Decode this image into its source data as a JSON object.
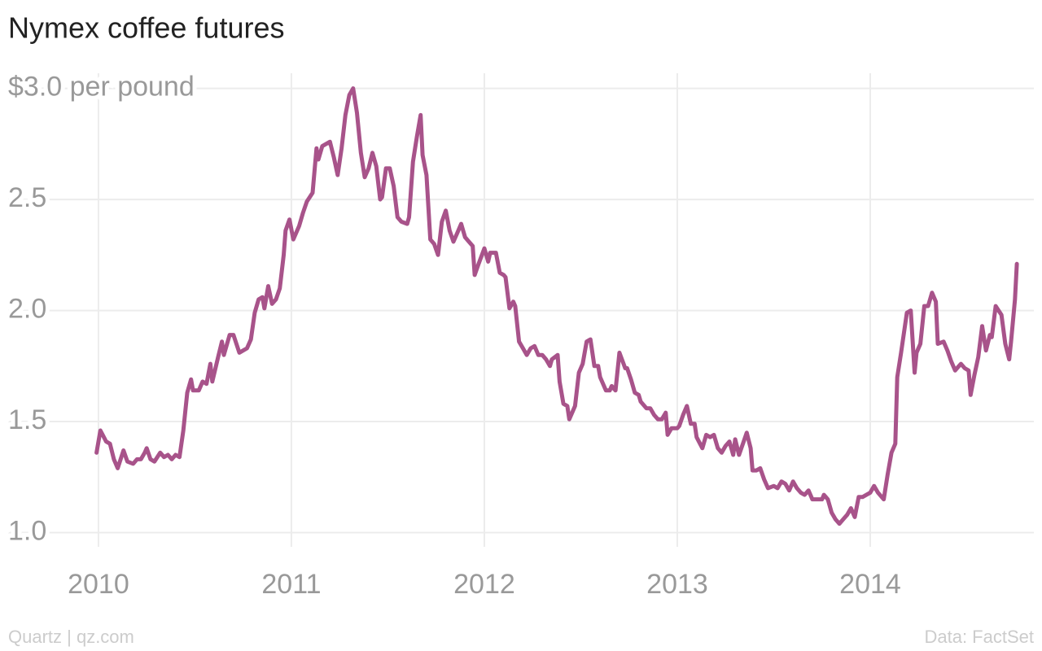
{
  "chart_data": {
    "type": "line",
    "title": "Nymex coffee futures",
    "source_left": "Quartz | qz.com",
    "source_right": "Data: FactSet",
    "x": [
      2009.99,
      2010.01,
      2010.04,
      2010.06,
      2010.08,
      2010.1,
      2010.13,
      2010.15,
      2010.18,
      2010.2,
      2010.22,
      2010.24,
      2010.25,
      2010.27,
      2010.29,
      2010.32,
      2010.34,
      2010.36,
      2010.38,
      2010.4,
      2010.42,
      2010.44,
      2010.46,
      2010.48,
      2010.49,
      2010.52,
      2010.54,
      2010.56,
      2010.58,
      2010.59,
      2010.62,
      2010.64,
      2010.65,
      2010.68,
      2010.7,
      2010.73,
      2010.75,
      2010.77,
      2010.79,
      2010.81,
      2010.83,
      2010.85,
      2010.86,
      2010.88,
      2010.9,
      2010.92,
      2010.94,
      2010.96,
      2010.97,
      2010.99,
      2011.01,
      2011.04,
      2011.06,
      2011.08,
      2011.11,
      2011.13,
      2011.14,
      2011.16,
      2011.2,
      2011.22,
      2011.24,
      2011.26,
      2011.28,
      2011.3,
      2011.32,
      2011.34,
      2011.36,
      2011.38,
      2011.4,
      2011.42,
      2011.44,
      2011.46,
      2011.47,
      2011.49,
      2011.51,
      2011.53,
      2011.55,
      2011.57,
      2011.6,
      2011.61,
      2011.63,
      2011.65,
      2011.67,
      2011.68,
      2011.7,
      2011.72,
      2011.74,
      2011.76,
      2011.78,
      2011.8,
      2011.82,
      2011.84,
      2011.86,
      2011.88,
      2011.9,
      2011.92,
      2011.94,
      2011.95,
      2011.97,
      2012.0,
      2012.02,
      2012.03,
      2012.06,
      2012.08,
      2012.1,
      2012.11,
      2012.13,
      2012.15,
      2012.16,
      2012.18,
      2012.2,
      2012.22,
      2012.24,
      2012.26,
      2012.28,
      2012.3,
      2012.32,
      2012.34,
      2012.35,
      2012.38,
      2012.39,
      2012.41,
      2012.43,
      2012.44,
      2012.47,
      2012.49,
      2012.51,
      2012.53,
      2012.55,
      2012.57,
      2012.59,
      2012.6,
      2012.63,
      2012.65,
      2012.66,
      2012.68,
      2012.7,
      2012.73,
      2012.74,
      2012.76,
      2012.78,
      2012.8,
      2012.81,
      2012.84,
      2012.86,
      2012.88,
      2012.9,
      2012.92,
      2012.94,
      2012.95,
      2012.97,
      2013.0,
      2013.01,
      2013.03,
      2013.05,
      2013.07,
      2013.09,
      2013.1,
      2013.13,
      2013.15,
      2013.17,
      2013.19,
      2013.21,
      2013.23,
      2013.25,
      2013.27,
      2013.29,
      2013.3,
      2013.32,
      2013.34,
      2013.36,
      2013.38,
      2013.39,
      2013.41,
      2013.43,
      2013.45,
      2013.47,
      2013.5,
      2013.52,
      2013.54,
      2013.56,
      2013.58,
      2013.6,
      2013.62,
      2013.64,
      2013.66,
      2013.68,
      2013.7,
      2013.73,
      2013.75,
      2013.76,
      2013.78,
      2013.8,
      2013.82,
      2013.84,
      2013.86,
      2013.88,
      2013.9,
      2013.92,
      2013.94,
      2013.96,
      2013.98,
      2014.0,
      2014.02,
      2014.04,
      2014.07,
      2014.09,
      2014.11,
      2014.13,
      2014.14,
      2014.16,
      2014.19,
      2014.21,
      2014.23,
      2014.24,
      2014.26,
      2014.28,
      2014.3,
      2014.32,
      2014.34,
      2014.35,
      2014.38,
      2014.4,
      2014.42,
      2014.44,
      2014.46,
      2014.47,
      2014.49,
      2014.51,
      2014.52,
      2014.54,
      2014.56,
      2014.58,
      2014.6,
      2014.62,
      2014.63,
      2014.65,
      2014.68,
      2014.7,
      2014.72,
      2014.73,
      2014.75,
      2014.76
    ],
    "series": [
      {
        "color": "#a8538a",
        "values": [
          1.36,
          1.46,
          1.41,
          1.4,
          1.33,
          1.29,
          1.37,
          1.32,
          1.31,
          1.33,
          1.33,
          1.36,
          1.38,
          1.33,
          1.32,
          1.36,
          1.34,
          1.35,
          1.33,
          1.35,
          1.34,
          1.46,
          1.63,
          1.69,
          1.64,
          1.64,
          1.68,
          1.67,
          1.76,
          1.68,
          1.79,
          1.86,
          1.8,
          1.89,
          1.89,
          1.81,
          1.82,
          1.83,
          1.87,
          1.99,
          2.05,
          2.06,
          2.01,
          2.11,
          2.03,
          2.05,
          2.1,
          2.25,
          2.36,
          2.41,
          2.32,
          2.38,
          2.44,
          2.49,
          2.53,
          2.73,
          2.68,
          2.74,
          2.76,
          2.69,
          2.61,
          2.73,
          2.88,
          2.97,
          3.0,
          2.89,
          2.71,
          2.6,
          2.64,
          2.71,
          2.65,
          2.5,
          2.51,
          2.64,
          2.64,
          2.56,
          2.42,
          2.4,
          2.39,
          2.42,
          2.67,
          2.78,
          2.88,
          2.7,
          2.61,
          2.32,
          2.3,
          2.25,
          2.4,
          2.45,
          2.36,
          2.31,
          2.35,
          2.39,
          2.33,
          2.31,
          2.29,
          2.16,
          2.21,
          2.28,
          2.22,
          2.26,
          2.26,
          2.17,
          2.16,
          2.15,
          2.01,
          2.04,
          2.02,
          1.86,
          1.83,
          1.8,
          1.83,
          1.84,
          1.8,
          1.8,
          1.78,
          1.75,
          1.78,
          1.8,
          1.68,
          1.58,
          1.57,
          1.51,
          1.57,
          1.72,
          1.76,
          1.86,
          1.87,
          1.75,
          1.75,
          1.7,
          1.64,
          1.64,
          1.66,
          1.64,
          1.81,
          1.74,
          1.74,
          1.69,
          1.63,
          1.62,
          1.59,
          1.56,
          1.56,
          1.53,
          1.51,
          1.51,
          1.54,
          1.44,
          1.47,
          1.47,
          1.48,
          1.53,
          1.57,
          1.49,
          1.49,
          1.43,
          1.38,
          1.44,
          1.43,
          1.44,
          1.38,
          1.36,
          1.39,
          1.41,
          1.35,
          1.42,
          1.35,
          1.4,
          1.45,
          1.38,
          1.28,
          1.28,
          1.29,
          1.24,
          1.2,
          1.21,
          1.2,
          1.23,
          1.22,
          1.19,
          1.23,
          1.2,
          1.18,
          1.17,
          1.19,
          1.15,
          1.15,
          1.15,
          1.17,
          1.15,
          1.09,
          1.06,
          1.04,
          1.06,
          1.08,
          1.11,
          1.07,
          1.16,
          1.16,
          1.17,
          1.18,
          1.21,
          1.18,
          1.15,
          1.26,
          1.36,
          1.4,
          1.7,
          1.81,
          1.99,
          2.0,
          1.72,
          1.81,
          1.85,
          2.02,
          2.02,
          2.08,
          2.04,
          1.85,
          1.86,
          1.82,
          1.77,
          1.73,
          1.75,
          1.76,
          1.74,
          1.73,
          1.62,
          1.71,
          1.79,
          1.93,
          1.82,
          1.89,
          1.88,
          2.02,
          1.98,
          1.85,
          1.78,
          1.86,
          2.05,
          2.21
        ]
      }
    ],
    "xlim": [
      2009.532,
      2014.848
    ],
    "xticks": [
      2010,
      2011,
      2012,
      2013,
      2014
    ],
    "ylim": [
      0.87,
      3.05
    ],
    "yticks": [
      {
        "value": 1,
        "label": "1.0"
      },
      {
        "value": 1.5,
        "label": "1.5"
      },
      {
        "value": 2,
        "label": "2.0"
      },
      {
        "value": 2.5,
        "label": "2.5"
      },
      {
        "value": 3,
        "label": "$3.0 per pound"
      }
    ],
    "grid": true
  }
}
